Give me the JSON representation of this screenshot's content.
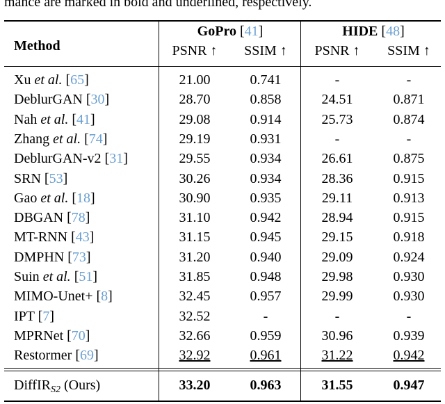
{
  "caption_fragment": "mance are marked in bold and underlined, respectively.",
  "brackets": [
    "[",
    "]"
  ],
  "table": {
    "method_header": "Method",
    "groups": [
      {
        "name": "GoPro",
        "ref": "41",
        "columns": [
          "PSNR ↑",
          "SSIM ↑"
        ]
      },
      {
        "name": "HIDE",
        "ref": "48",
        "columns": [
          "PSNR ↑",
          "SSIM ↑"
        ]
      }
    ],
    "rows": [
      {
        "method": "Xu",
        "etal": "et al.",
        "ref": "65",
        "values": [
          "21.00",
          "0.741",
          "-",
          "-"
        ]
      },
      {
        "method": "DeblurGAN",
        "ref": "30",
        "values": [
          "28.70",
          "0.858",
          "24.51",
          "0.871"
        ]
      },
      {
        "method": "Nah",
        "etal": "et al.",
        "ref": "41",
        "values": [
          "29.08",
          "0.914",
          "25.73",
          "0.874"
        ]
      },
      {
        "method": "Zhang",
        "etal": "et al.",
        "ref": "74",
        "values": [
          "29.19",
          "0.931",
          "-",
          "-"
        ]
      },
      {
        "method": "DeblurGAN-v2",
        "ref": "31",
        "values": [
          "29.55",
          "0.934",
          "26.61",
          "0.875"
        ]
      },
      {
        "method": "SRN",
        "ref": "53",
        "values": [
          "30.26",
          "0.934",
          "28.36",
          "0.915"
        ]
      },
      {
        "method": "Gao",
        "etal": "et al.",
        "ref": "18",
        "values": [
          "30.90",
          "0.935",
          "29.11",
          "0.913"
        ]
      },
      {
        "method": "DBGAN",
        "ref": "78",
        "values": [
          "31.10",
          "0.942",
          "28.94",
          "0.915"
        ]
      },
      {
        "method": "MT-RNN",
        "ref": "43",
        "values": [
          "31.15",
          "0.945",
          "29.15",
          "0.918"
        ]
      },
      {
        "method": "DMPHN",
        "ref": "73",
        "values": [
          "31.20",
          "0.940",
          "29.09",
          "0.924"
        ]
      },
      {
        "method": "Suin",
        "etal": "et al.",
        "ref": "51",
        "values": [
          "31.85",
          "0.948",
          "29.98",
          "0.930"
        ]
      },
      {
        "method": "MIMO-Unet+",
        "ref": "8",
        "values": [
          "32.45",
          "0.957",
          "29.99",
          "0.930"
        ]
      },
      {
        "method": "IPT",
        "ref": "7",
        "values": [
          "32.52",
          "-",
          "-",
          "-"
        ]
      },
      {
        "method": "MPRNet",
        "ref": "70",
        "values": [
          "32.66",
          "0.959",
          "30.96",
          "0.939"
        ]
      },
      {
        "method": "Restormer",
        "ref": "69",
        "values": [
          "32.92",
          "0.961",
          "31.22",
          "0.942"
        ],
        "emphasis": "underline"
      }
    ],
    "ours": {
      "method": "DiffIR",
      "subscript": "S2",
      "suffix": "(Ours)",
      "values": [
        "33.20",
        "0.963",
        "31.55",
        "0.947"
      ],
      "emphasis": "bold"
    }
  }
}
